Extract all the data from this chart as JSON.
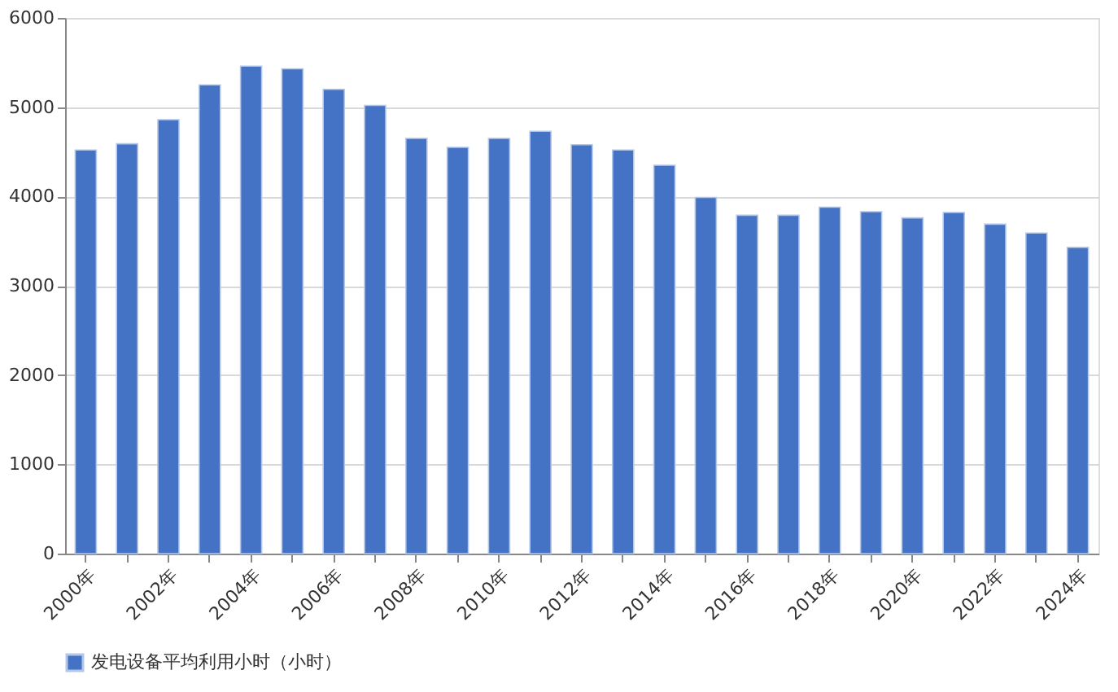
{
  "chart_data": {
    "type": "bar",
    "categories": [
      "2000年",
      null,
      "2002年",
      null,
      "2004年",
      null,
      "2006年",
      null,
      "2008年",
      null,
      "2010年",
      null,
      "2012年",
      null,
      "2014年",
      null,
      "2016年",
      null,
      "2018年",
      null,
      "2020年",
      null,
      "2022年",
      null,
      "2024年"
    ],
    "series": [
      {
        "name": "发电设备平均利用小时（小时）",
        "color": "#4472c4",
        "values": [
          4520,
          4590,
          4860,
          5250,
          5460,
          5430,
          5200,
          5020,
          4650,
          4550,
          4650,
          4730,
          4580,
          4520,
          4350,
          3990,
          3790,
          3790,
          3880,
          3830,
          3760,
          3820,
          3690,
          3590,
          3430
        ]
      }
    ],
    "ylim": [
      0,
      6000
    ],
    "yticks": [
      0,
      1000,
      2000,
      3000,
      4000,
      5000,
      6000
    ],
    "grid": "y",
    "legend": "bottom"
  }
}
